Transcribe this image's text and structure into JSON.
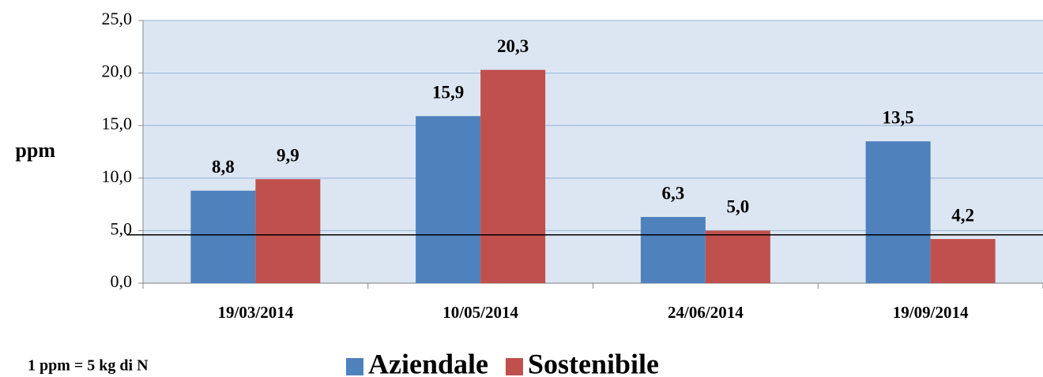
{
  "chart_data": {
    "type": "bar",
    "y_label": "ppm",
    "annotation": "1 ppm = 5 kg di N",
    "categories": [
      "19/03/2014",
      "10/05/2014",
      "24/06/2014",
      "19/09/2014"
    ],
    "series": [
      {
        "name": "Aziendale",
        "color": "#4f81bd",
        "values": [
          8.8,
          15.9,
          6.3,
          13.5
        ],
        "value_labels": [
          "8,8",
          "15,9",
          "6,3",
          "13,5"
        ]
      },
      {
        "name": "Sostenibile",
        "color": "#c0504d",
        "values": [
          9.9,
          20.3,
          5.0,
          4.2
        ],
        "value_labels": [
          "9,9",
          "20,3",
          "5,0",
          "4,2"
        ]
      }
    ],
    "ylim": [
      0,
      25
    ],
    "yticks": [
      {
        "value": 0,
        "label": "0,0"
      },
      {
        "value": 5,
        "label": "5,0"
      },
      {
        "value": 10,
        "label": "10,0"
      },
      {
        "value": 15,
        "label": "15,0"
      },
      {
        "value": 20,
        "label": "20,0"
      },
      {
        "value": 25,
        "label": "25,0"
      }
    ],
    "reference_line": 4.6,
    "grid": true,
    "legend": "bottom"
  }
}
